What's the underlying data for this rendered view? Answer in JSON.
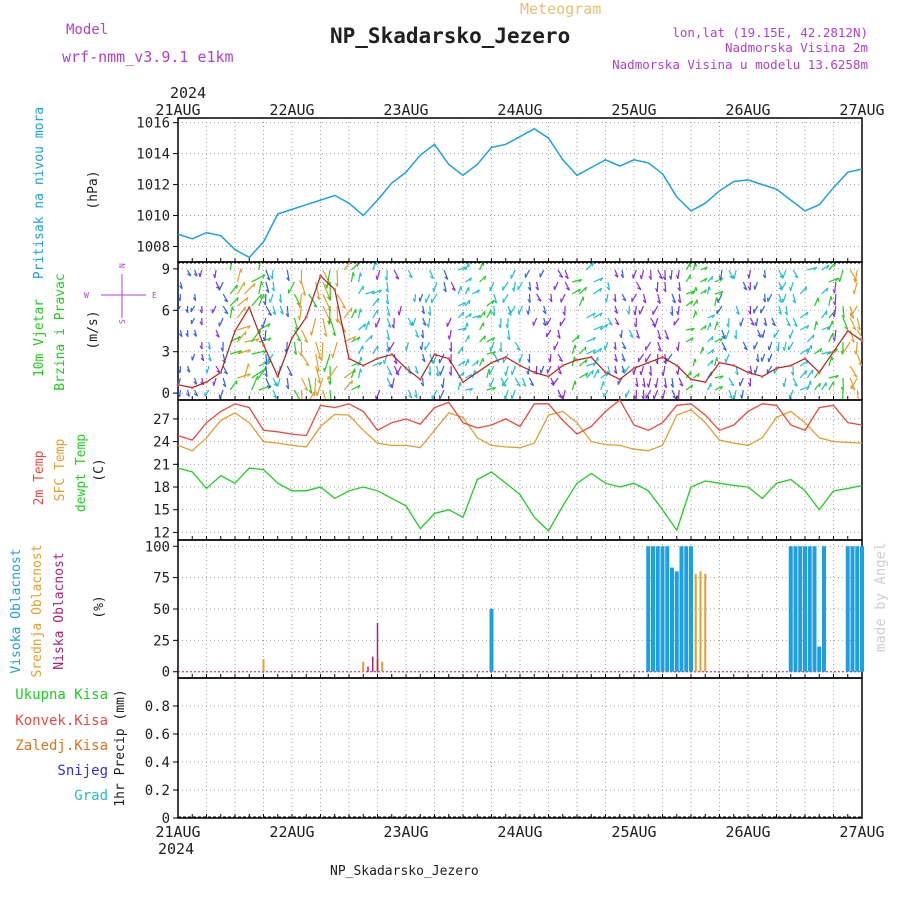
{
  "header": {
    "model_label": "Model",
    "model_name": "wrf-nmm_v3.9.1 e1km",
    "subtitle": "Meteogram",
    "title": "NP_Skadarsko_Jezero",
    "lonlat": "lon,lat (19.15E, 42.2812N)",
    "elevation": "Nadmorska Visina 2m",
    "model_elevation": "Nadmorska Visina u modelu 13.6258m",
    "footer": "NP_Skadarsko_Jezero",
    "credit": "made by Angel"
  },
  "time_axis": {
    "year": "2024",
    "days": [
      "21AUG",
      "22AUG",
      "23AUG",
      "24AUG",
      "25AUG",
      "26AUG",
      "27AUG"
    ]
  },
  "colors": {
    "pressure": "#1ea0e0",
    "temp2m": "#e84c3d",
    "sfc_temp": "#e0a030",
    "dewpt": "#22cc22",
    "high_cloud": "#1ea0e0",
    "mid_cloud": "#e0a030",
    "low_cloud": "#b0207a",
    "wind_green": "#22cc22",
    "wind_purple": "#8a2be2",
    "wind_blue": "#3060e0",
    "wind_cyan": "#20c0d0",
    "compass": "#b040d0",
    "precip_total": "#22cc22",
    "precip_conv": "#e84c3d",
    "precip_frozen": "#e07020",
    "precip_snow": "#3030e0",
    "precip_grad": "#20c0c0",
    "credit": "#cfcfcf"
  },
  "chart_data": [
    {
      "type": "line",
      "ylabel": [
        "Pritisak na nivou mora",
        "(hPa)"
      ],
      "ylim": [
        1007,
        1016.3
      ],
      "yticks": [
        "1008",
        "1010",
        "1012",
        "1014",
        "1016"
      ],
      "grid": true,
      "series": [
        {
          "name": "Pritisak na nivou mora",
          "x_hours": [
            0,
            3,
            6,
            9,
            12,
            15,
            18,
            21,
            24,
            27,
            30,
            33,
            36,
            39,
            42,
            45,
            48,
            51,
            54,
            57,
            60,
            63,
            66,
            69,
            72,
            75,
            78,
            81,
            84,
            87,
            90,
            93,
            96,
            99,
            102,
            105,
            108,
            111,
            114,
            117,
            120,
            123,
            126,
            129,
            132,
            135,
            138,
            141,
            144
          ],
          "values": [
            1008.8,
            1008.5,
            1008.9,
            1008.7,
            1007.8,
            1007.3,
            1008.3,
            1010.1,
            1010.4,
            1010.7,
            1011.0,
            1011.3,
            1010.8,
            1010.0,
            1011.0,
            1012.1,
            1012.8,
            1013.9,
            1014.6,
            1013.3,
            1012.6,
            1013.3,
            1014.4,
            1014.6,
            1015.1,
            1015.6,
            1015.0,
            1013.6,
            1012.6,
            1013.1,
            1013.6,
            1013.2,
            1013.6,
            1013.4,
            1012.7,
            1011.2,
            1010.3,
            1010.8,
            1011.6,
            1012.2,
            1012.3,
            1012.0,
            1011.7,
            1011.0,
            1010.3,
            1010.7,
            1011.8,
            1012.8,
            1013.0
          ]
        }
      ]
    },
    {
      "type": "line",
      "ylabel": [
        "10m Vjetar",
        "Brzina i Pravac",
        "(m/s)"
      ],
      "ylim": [
        -0.5,
        9.5
      ],
      "yticks": [
        "0",
        "3",
        "6",
        "9"
      ],
      "grid": true,
      "compass": [
        "N",
        "S",
        "W",
        "E"
      ],
      "series": [
        {
          "name": "10m Vjetar",
          "x_hours": [
            0,
            3,
            6,
            9,
            12,
            15,
            18,
            21,
            24,
            27,
            30,
            33,
            36,
            39,
            42,
            45,
            48,
            51,
            54,
            57,
            60,
            63,
            66,
            69,
            72,
            75,
            78,
            81,
            84,
            87,
            90,
            93,
            96,
            99,
            102,
            105,
            108,
            111,
            114,
            117,
            120,
            123,
            126,
            129,
            132,
            135,
            138,
            141,
            144
          ],
          "values": [
            0.6,
            0.4,
            0.8,
            1.5,
            4.5,
            6.2,
            3.5,
            1.2,
            4.0,
            5.5,
            8.5,
            7.5,
            2.5,
            2.0,
            2.5,
            2.8,
            1.8,
            1.0,
            2.8,
            2.5,
            0.8,
            1.5,
            2.2,
            2.6,
            2.0,
            1.5,
            1.2,
            2.0,
            2.4,
            2.6,
            1.5,
            1.0,
            1.8,
            2.2,
            2.6,
            2.0,
            1.0,
            0.8,
            2.2,
            2.0,
            1.5,
            1.2,
            1.8,
            2.0,
            2.5,
            1.5,
            3.0,
            4.5,
            3.8
          ]
        }
      ]
    },
    {
      "type": "line",
      "ylabel": [
        "2m Temp",
        "SFC Temp",
        "dewpt Temp",
        "(C)"
      ],
      "ylim": [
        11,
        29.5
      ],
      "yticks": [
        "12",
        "15",
        "18",
        "21",
        "24",
        "27"
      ],
      "grid": true,
      "series": [
        {
          "name": "2m Temp",
          "x_hours": [
            0,
            3,
            6,
            9,
            12,
            15,
            18,
            21,
            24,
            27,
            30,
            33,
            36,
            39,
            42,
            45,
            48,
            51,
            54,
            57,
            60,
            63,
            66,
            69,
            72,
            75,
            78,
            81,
            84,
            87,
            90,
            93,
            96,
            99,
            102,
            105,
            108,
            111,
            114,
            117,
            120,
            123,
            126,
            129,
            132,
            135,
            138,
            141,
            144
          ],
          "values": [
            24.8,
            24.2,
            26.5,
            28.0,
            29.0,
            28.5,
            25.5,
            25.3,
            25.0,
            24.8,
            28.8,
            28.5,
            29.0,
            28.0,
            25.5,
            26.5,
            27.0,
            26.3,
            28.5,
            29.2,
            26.5,
            25.8,
            26.2,
            27.0,
            26.0,
            29.0,
            29.0,
            26.8,
            25.0,
            26.0,
            28.0,
            29.5,
            26.2,
            25.5,
            26.5,
            28.8,
            29.0,
            27.5,
            25.5,
            26.2,
            28.0,
            29.0,
            28.8,
            26.2,
            25.5,
            28.5,
            28.8,
            26.5,
            26.2
          ]
        },
        {
          "name": "SFC Temp",
          "x_hours": [
            0,
            3,
            6,
            9,
            12,
            15,
            18,
            21,
            24,
            27,
            30,
            33,
            36,
            39,
            42,
            45,
            48,
            51,
            54,
            57,
            60,
            63,
            66,
            69,
            72,
            75,
            78,
            81,
            84,
            87,
            90,
            93,
            96,
            99,
            102,
            105,
            108,
            111,
            114,
            117,
            120,
            123,
            126,
            129,
            132,
            135,
            138,
            141,
            144
          ],
          "values": [
            23.5,
            22.8,
            24.5,
            26.8,
            27.8,
            26.5,
            24.0,
            23.8,
            23.5,
            23.3,
            26.0,
            27.6,
            27.5,
            25.5,
            23.8,
            23.5,
            23.5,
            23.2,
            25.5,
            27.8,
            27.2,
            24.5,
            23.5,
            23.3,
            23.2,
            23.8,
            27.5,
            28.0,
            26.5,
            24.0,
            23.6,
            23.5,
            23.0,
            22.8,
            23.5,
            27.5,
            28.2,
            26.5,
            24.2,
            23.8,
            23.5,
            24.5,
            27.2,
            28.0,
            26.5,
            24.5,
            24.0,
            23.9,
            23.8
          ]
        },
        {
          "name": "dewpt Temp",
          "x_hours": [
            0,
            3,
            6,
            9,
            12,
            15,
            18,
            21,
            24,
            27,
            30,
            33,
            36,
            39,
            42,
            45,
            48,
            51,
            54,
            57,
            60,
            63,
            66,
            69,
            72,
            75,
            78,
            81,
            84,
            87,
            90,
            93,
            96,
            99,
            102,
            105,
            108,
            111,
            114,
            117,
            120,
            123,
            126,
            129,
            132,
            135,
            138,
            141,
            144
          ],
          "values": [
            20.5,
            20.0,
            17.8,
            19.5,
            18.5,
            20.5,
            20.3,
            18.5,
            17.5,
            17.5,
            18.0,
            16.5,
            17.5,
            18.0,
            17.5,
            16.5,
            15.5,
            12.5,
            14.5,
            15.0,
            14.0,
            19.0,
            20.0,
            18.5,
            17.0,
            14.0,
            12.2,
            15.5,
            18.5,
            19.8,
            18.5,
            18.0,
            18.5,
            17.5,
            15.0,
            12.3,
            18.0,
            18.8,
            18.5,
            18.2,
            18.0,
            16.5,
            18.5,
            19.0,
            17.5,
            15.0,
            17.5,
            17.8,
            18.2
          ]
        }
      ]
    },
    {
      "type": "bar",
      "ylabel": [
        "Visoka Oblacnost",
        "Srednja Oblacnost",
        "Niska Oblacnost",
        "(%)"
      ],
      "ylim": [
        -5,
        105
      ],
      "yticks": [
        "0",
        "25",
        "50",
        "75",
        "100"
      ],
      "grid": true,
      "series": [
        {
          "name": "Visoka Oblacnost",
          "x_hours": [
            66,
            99,
            100,
            101,
            102,
            103,
            104,
            105,
            106,
            107,
            108,
            129,
            130,
            131,
            132,
            133,
            134,
            135,
            136,
            141,
            142,
            143,
            144
          ],
          "values": [
            50,
            100,
            100,
            100,
            100,
            100,
            83,
            80,
            100,
            100,
            100,
            100,
            100,
            100,
            100,
            100,
            100,
            20,
            100,
            100,
            100,
            100,
            100
          ]
        },
        {
          "name": "Srednja Oblacnost",
          "x_hours": [
            18,
            39,
            42,
            43,
            109,
            110,
            111
          ],
          "values": [
            10,
            8,
            10,
            8,
            78,
            80,
            78
          ]
        },
        {
          "name": "Niska Oblacnost",
          "x_hours": [
            40,
            41,
            42
          ],
          "values": [
            4,
            12,
            39
          ]
        }
      ]
    },
    {
      "type": "bar",
      "ylabel": [
        "1hr Precip (mm)"
      ],
      "ylim": [
        0,
        1
      ],
      "yticks": [
        "0",
        "0.2",
        "0.4",
        "0.6",
        "0.8"
      ],
      "grid": true,
      "legend": [
        "Ukupna Kisa",
        "Konvek.Kisa",
        "Zaledj.Kisa",
        "Snijeg",
        "Grad"
      ],
      "series": [
        {
          "name": "Ukupna Kisa",
          "values": []
        },
        {
          "name": "Konvek.Kisa",
          "values": []
        },
        {
          "name": "Zaledj.Kisa",
          "values": []
        },
        {
          "name": "Snijeg",
          "values": []
        },
        {
          "name": "Grad",
          "values": []
        }
      ]
    }
  ]
}
